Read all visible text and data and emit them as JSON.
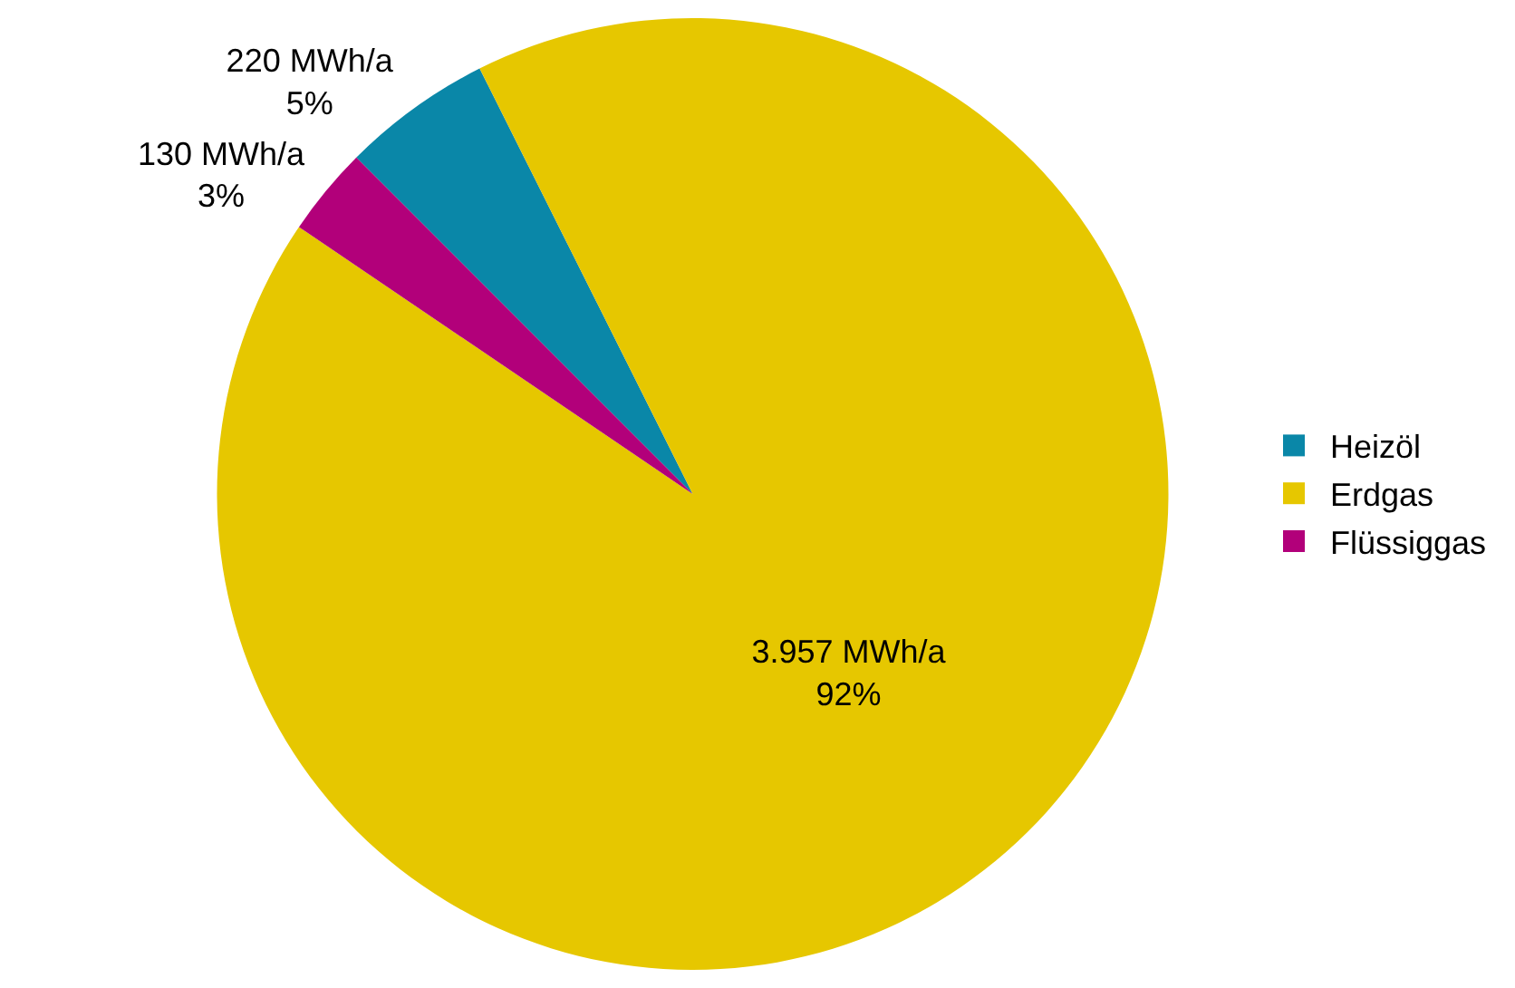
{
  "chart_data": {
    "type": "pie",
    "categories": [
      "Heizöl",
      "Erdgas",
      "Flüssiggas"
    ],
    "values": [
      220,
      3957,
      130
    ],
    "value_labels": [
      "220 MWh/a\n5%",
      "3.957 MWh/a\n92%",
      "130 MWh/a\n3%"
    ],
    "colors": [
      "#0a87a8",
      "#e6c700",
      "#b2007a"
    ],
    "legend": "right"
  }
}
